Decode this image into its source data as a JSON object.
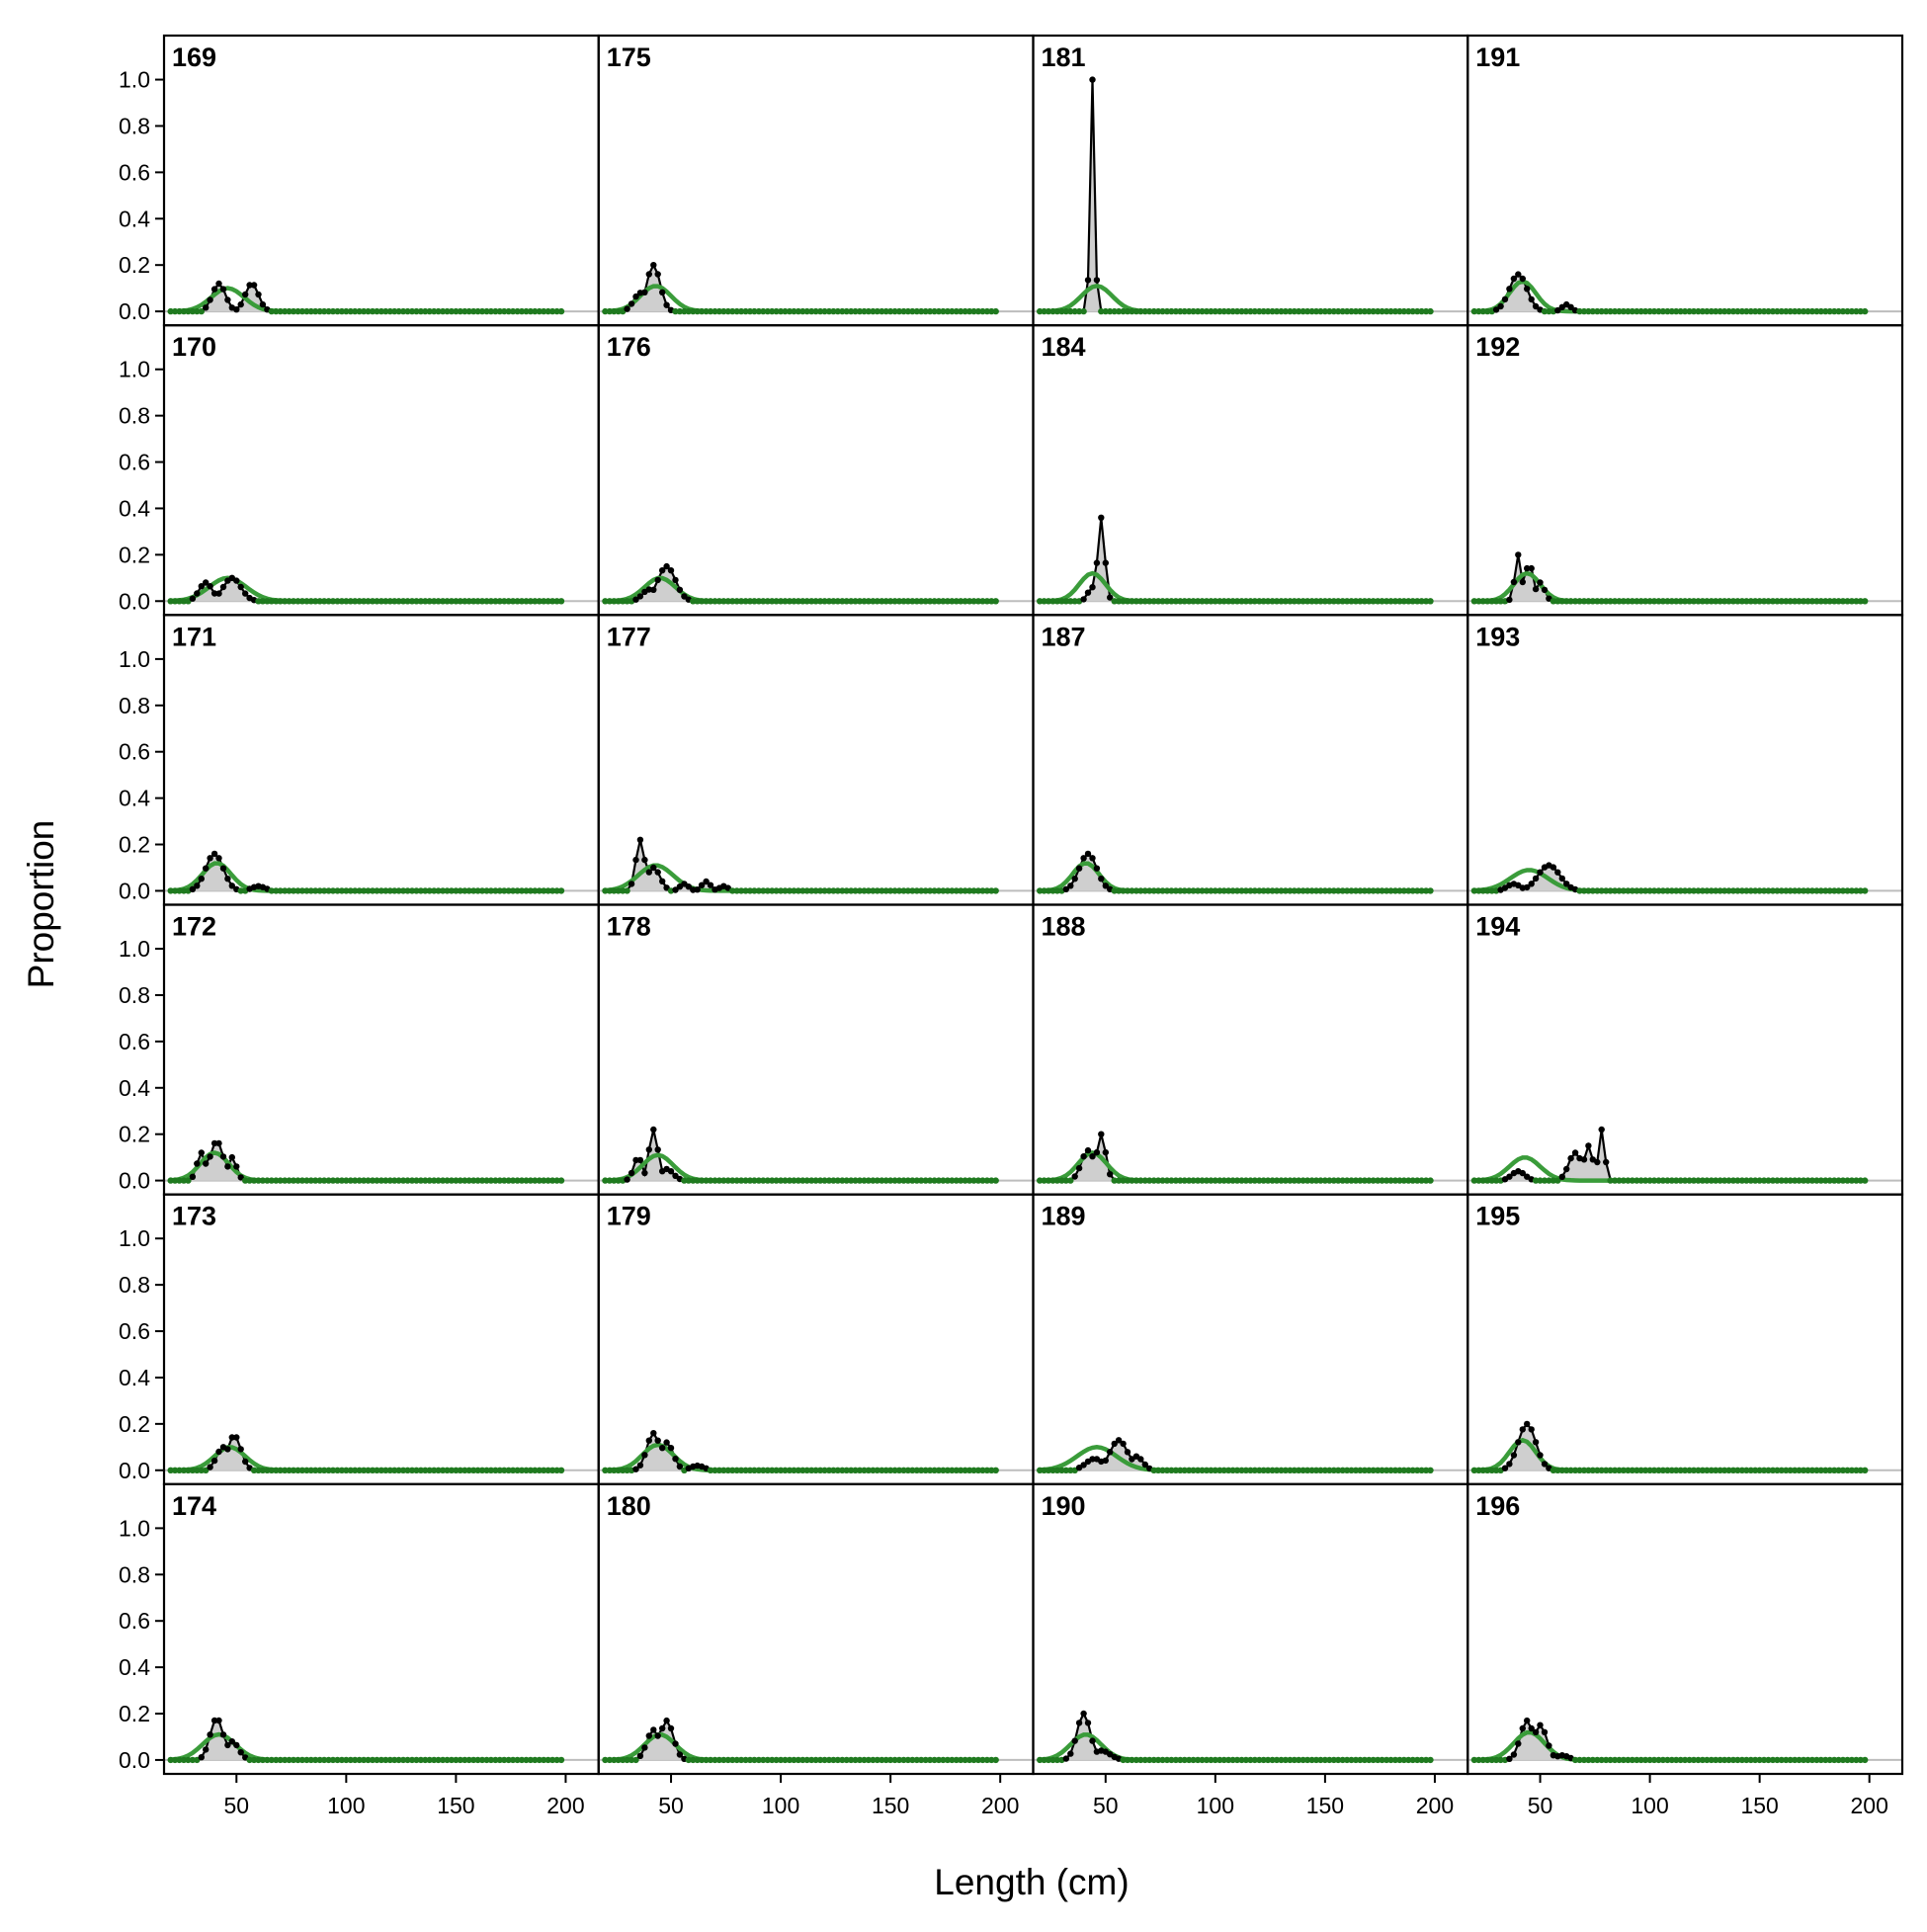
{
  "chart_data": {
    "type": "line",
    "xlabel": "Length (cm)",
    "ylabel": "Proportion",
    "xlim": [
      17,
      215
    ],
    "ylim": [
      -0.06,
      1.19
    ],
    "x_ticks": [
      50,
      100,
      150,
      200
    ],
    "y_ticks": [
      "0.0",
      "0.2",
      "0.4",
      "0.6",
      "0.8",
      "1.0"
    ],
    "length_bins": [
      20,
      198,
      2
    ],
    "grid": false,
    "legend": "none",
    "layout": {
      "rows": 6,
      "cols": 4,
      "order": "column-major"
    },
    "colors": {
      "observed_line": "#000000",
      "observed_fill": "#cfcfcf",
      "expected": "#3a9c3a",
      "expected_points": "#1f7a1f",
      "zero_line": "#bdbdbd",
      "frame": "#000000"
    },
    "series_meaning": [
      "observed proportion (black points and line, grey fill)",
      "expected proportion (green line)"
    ],
    "panels": [
      {
        "label": "169",
        "obs_peaks": [
          [
            42,
            0.12,
            3
          ],
          [
            57,
            0.12,
            3
          ]
        ],
        "exp": [
          46,
          7.5,
          0.1
        ]
      },
      {
        "label": "170",
        "obs_peaks": [
          [
            36,
            0.08,
            3
          ],
          [
            48,
            0.1,
            4
          ]
        ],
        "exp": [
          46,
          8.5,
          0.1
        ]
      },
      {
        "label": "171",
        "obs_peaks": [
          [
            40,
            0.16,
            4
          ],
          [
            60,
            0.02,
            3
          ]
        ],
        "exp": [
          41,
          6.5,
          0.12
        ]
      },
      {
        "label": "172",
        "obs_peaks": [
          [
            34,
            0.12,
            2
          ],
          [
            41,
            0.17,
            3
          ],
          [
            48,
            0.1,
            2
          ]
        ],
        "exp": [
          40,
          6.5,
          0.12
        ]
      },
      {
        "label": "173",
        "obs_peaks": [
          [
            44,
            0.1,
            3
          ],
          [
            49,
            0.15,
            3
          ]
        ],
        "exp": [
          47,
          7,
          0.1
        ]
      },
      {
        "label": "174",
        "obs_peaks": [
          [
            41,
            0.18,
            3
          ],
          [
            48,
            0.08,
            3
          ]
        ],
        "exp": [
          42,
          7.5,
          0.11
        ]
      },
      {
        "label": "175",
        "obs_peaks": [
          [
            42,
            0.2,
            3
          ],
          [
            36,
            0.08,
            3
          ]
        ],
        "exp": [
          43,
          7,
          0.11
        ]
      },
      {
        "label": "176",
        "obs_peaks": [
          [
            48,
            0.15,
            4
          ],
          [
            40,
            0.05,
            3
          ]
        ],
        "exp": [
          45,
          7,
          0.1
        ]
      },
      {
        "label": "177",
        "obs_peaks": [
          [
            36,
            0.22,
            2
          ],
          [
            42,
            0.1,
            3
          ],
          [
            56,
            0.03,
            2
          ],
          [
            66,
            0.04,
            2
          ],
          [
            74,
            0.02,
            2
          ]
        ],
        "exp": [
          43,
          8,
          0.11
        ]
      },
      {
        "label": "178",
        "obs_peaks": [
          [
            35,
            0.1,
            2
          ],
          [
            42,
            0.22,
            2
          ],
          [
            48,
            0.05,
            3
          ]
        ],
        "exp": [
          44,
          7,
          0.11
        ]
      },
      {
        "label": "179",
        "obs_peaks": [
          [
            42,
            0.16,
            3
          ],
          [
            48,
            0.12,
            3
          ],
          [
            62,
            0.02,
            3
          ]
        ],
        "exp": [
          44,
          7,
          0.11
        ]
      },
      {
        "label": "180",
        "obs_peaks": [
          [
            42,
            0.13,
            3
          ],
          [
            48,
            0.17,
            3
          ]
        ],
        "exp": [
          45,
          7,
          0.11
        ]
      },
      {
        "label": "181",
        "obs_peaks": [
          [
            44,
            1.0,
            1
          ]
        ],
        "exp": [
          46,
          7,
          0.11
        ]
      },
      {
        "label": "184",
        "obs_peaks": [
          [
            48,
            0.36,
            1.6
          ],
          [
            44,
            0.06,
            2
          ]
        ],
        "exp": [
          44,
          6,
          0.12
        ]
      },
      {
        "label": "187",
        "obs_peaks": [
          [
            42,
            0.16,
            4
          ]
        ],
        "exp": [
          41,
          6,
          0.12
        ]
      },
      {
        "label": "188",
        "obs_peaks": [
          [
            42,
            0.13,
            3
          ],
          [
            48,
            0.2,
            2
          ]
        ],
        "exp": [
          44,
          6.5,
          0.12
        ]
      },
      {
        "label": "189",
        "obs_peaks": [
          [
            45,
            0.05,
            4
          ],
          [
            56,
            0.13,
            4
          ],
          [
            64,
            0.06,
            3
          ]
        ],
        "exp": [
          46,
          9,
          0.1
        ]
      },
      {
        "label": "190",
        "obs_peaks": [
          [
            40,
            0.2,
            3
          ],
          [
            48,
            0.04,
            4
          ]
        ],
        "exp": [
          41,
          7,
          0.11
        ]
      },
      {
        "label": "191",
        "obs_peaks": [
          [
            40,
            0.16,
            4
          ],
          [
            62,
            0.03,
            2
          ]
        ],
        "exp": [
          42,
          6,
          0.13
        ]
      },
      {
        "label": "192",
        "obs_peaks": [
          [
            40,
            0.2,
            1.5
          ],
          [
            45,
            0.16,
            2
          ],
          [
            50,
            0.08,
            2
          ]
        ],
        "exp": [
          44,
          6,
          0.12
        ]
      },
      {
        "label": "193",
        "obs_peaks": [
          [
            38,
            0.03,
            3
          ],
          [
            54,
            0.11,
            5
          ]
        ],
        "exp": [
          45,
          8.5,
          0.09
        ]
      },
      {
        "label": "194",
        "obs_peaks": [
          [
            40,
            0.04,
            3
          ],
          [
            66,
            0.12,
            3
          ],
          [
            72,
            0.15,
            2
          ],
          [
            78,
            0.22,
            1.4
          ]
        ],
        "exp": [
          43,
          7,
          0.1
        ]
      },
      {
        "label": "195",
        "obs_peaks": [
          [
            44,
            0.2,
            4
          ]
        ],
        "exp": [
          42,
          6,
          0.13
        ]
      },
      {
        "label": "196",
        "obs_peaks": [
          [
            44,
            0.17,
            3
          ],
          [
            50,
            0.15,
            3
          ],
          [
            60,
            0.02,
            3
          ]
        ],
        "exp": [
          45,
          7,
          0.12
        ]
      }
    ]
  }
}
